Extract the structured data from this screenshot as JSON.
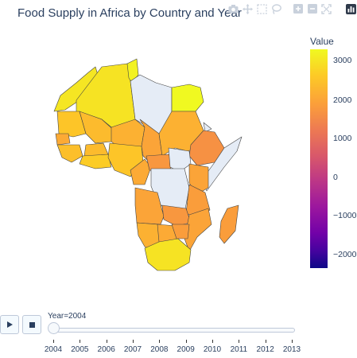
{
  "title": "Food Supply in Africa by Country and Year",
  "modebar": [
    "camera-icon",
    "pan-icon",
    "box-select-icon",
    "lasso-icon",
    "zoom-in-icon",
    "zoom-out-icon",
    "autoscale-icon",
    "plotly-logo-icon"
  ],
  "colorbar": {
    "title": "Value",
    "ticks": [
      "3000",
      "2000",
      "1000",
      "0",
      "−1000",
      "−2000"
    ],
    "range": [
      -2400,
      3300
    ],
    "colorscale": "Plasma",
    "colors": {
      "no_data": "#e5ecf6",
      "border": "#444444"
    }
  },
  "slider": {
    "current_label": "Year=2004",
    "years": [
      "2004",
      "2005",
      "2006",
      "2007",
      "2008",
      "2009",
      "2010",
      "2011",
      "2012",
      "2013"
    ],
    "current_index": 0
  },
  "controls": {
    "play": "play-icon",
    "pause": "pause-icon"
  },
  "chart_data": {
    "type": "choropleth",
    "title": "Food Supply in Africa by Country and Year",
    "year": 2004,
    "value_label": "Value",
    "zrange": [
      -2400,
      3300
    ],
    "countries": [
      {
        "name": "Morocco",
        "value": 3050
      },
      {
        "name": "Algeria",
        "value": 3000
      },
      {
        "name": "Tunisia",
        "value": 3200
      },
      {
        "name": "Libya",
        "value": null
      },
      {
        "name": "Egypt",
        "value": 3300
      },
      {
        "name": "Mauritania",
        "value": 2600
      },
      {
        "name": "Mali",
        "value": 2450
      },
      {
        "name": "Niger",
        "value": 2300
      },
      {
        "name": "Chad",
        "value": 2100
      },
      {
        "name": "Sudan",
        "value": 2300
      },
      {
        "name": "Eritrea",
        "value": null
      },
      {
        "name": "Ethiopia",
        "value": 1800
      },
      {
        "name": "Somalia",
        "value": null
      },
      {
        "name": "Senegal",
        "value": 2200
      },
      {
        "name": "Guinea",
        "value": 2500
      },
      {
        "name": "Burkina Faso",
        "value": 2450
      },
      {
        "name": "Ghana",
        "value": 2700
      },
      {
        "name": "Nigeria",
        "value": 2600
      },
      {
        "name": "Cameroon",
        "value": 2200
      },
      {
        "name": "Central African Republic",
        "value": 1900
      },
      {
        "name": "South Sudan",
        "value": null
      },
      {
        "name": "DR Congo",
        "value": null
      },
      {
        "name": "Kenya",
        "value": 2100
      },
      {
        "name": "Tanzania",
        "value": 2000
      },
      {
        "name": "Angola",
        "value": 2100
      },
      {
        "name": "Zambia",
        "value": 1900
      },
      {
        "name": "Mozambique",
        "value": 2100
      },
      {
        "name": "Madagascar",
        "value": 2000
      },
      {
        "name": "Namibia",
        "value": 2300
      },
      {
        "name": "Botswana",
        "value": 2200
      },
      {
        "name": "Zimbabwe",
        "value": 2000
      },
      {
        "name": "South Africa",
        "value": 3000
      }
    ]
  }
}
